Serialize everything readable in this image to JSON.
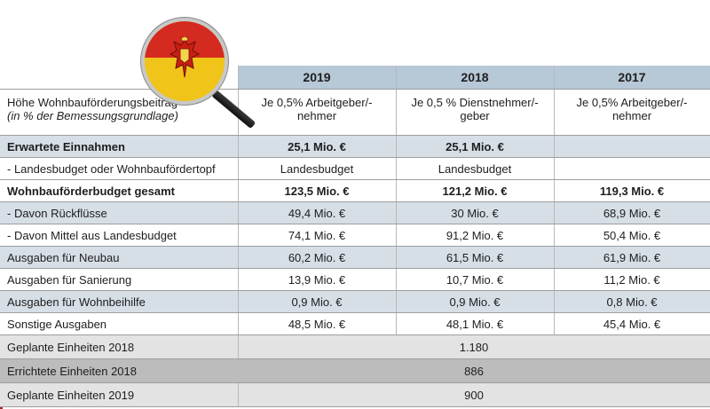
{
  "table": {
    "years": [
      "2019",
      "2018",
      "2017"
    ],
    "rate": {
      "label_main": "Höhe Wohnbauförderungsbeitrag",
      "label_sub": "(in % der Bemessungsgrundlage)",
      "values": [
        "Je 0,5% Arbeitgeber/-nehmer",
        "Je 0,5 % Dienstnehmer/-geber",
        "Je 0,5% Arbeitgeber/-nehmer"
      ]
    },
    "rows": [
      {
        "label": "Erwartete Einnahmen",
        "values": [
          "25,1 Mio. €",
          "25,1 Mio. €",
          ""
        ]
      },
      {
        "label": "- Landesbudget oder Wohnbaufördertopf",
        "values": [
          "Landesbudget",
          "Landesbudget",
          ""
        ]
      },
      {
        "label": "Wohnbauförderbudget gesamt",
        "values": [
          "123,5 Mio. €",
          "121,2 Mio. €",
          "119,3 Mio. €"
        ]
      },
      {
        "label": "- Davon Rückflüsse",
        "values": [
          "49,4 Mio. €",
          "30 Mio. €",
          "68,9 Mio. €"
        ]
      },
      {
        "label": "- Davon Mittel aus Landesbudget",
        "values": [
          "74,1 Mio. €",
          "91,2 Mio. €",
          "50,4 Mio. €"
        ]
      },
      {
        "label": "Ausgaben für Neubau",
        "values": [
          "60,2 Mio. €",
          "61,5 Mio. €",
          "61,9 Mio. €"
        ]
      },
      {
        "label": "Ausgaben für Sanierung",
        "values": [
          "13,9 Mio. €",
          "10,7 Mio. €",
          "11,2 Mio. €"
        ]
      },
      {
        "label": "Ausgaben für Wohnbeihilfe",
        "values": [
          "0,9 Mio. €",
          "0,9 Mio. €",
          "0,8 Mio. €"
        ]
      },
      {
        "label": "Sonstige Ausgaben",
        "values": [
          "48,5 Mio. €",
          "48,1 Mio. €",
          "45,4 Mio. €"
        ]
      }
    ],
    "summary": [
      {
        "label": "Geplante Einheiten 2018",
        "value": "1.180"
      },
      {
        "label": "Errichtete Einheiten 2018",
        "value": "886"
      },
      {
        "label": "Geplante Einheiten 2019",
        "value": "900"
      }
    ]
  },
  "colors": {
    "header": "#b7c8d7",
    "accent_border": "#9a2a25",
    "crest_red": "#d42a1f",
    "crest_gold": "#f0c419"
  },
  "icons": {
    "crest": "burgenland-coat-of-arms-icon",
    "magnifier": "magnifying-glass-icon"
  }
}
